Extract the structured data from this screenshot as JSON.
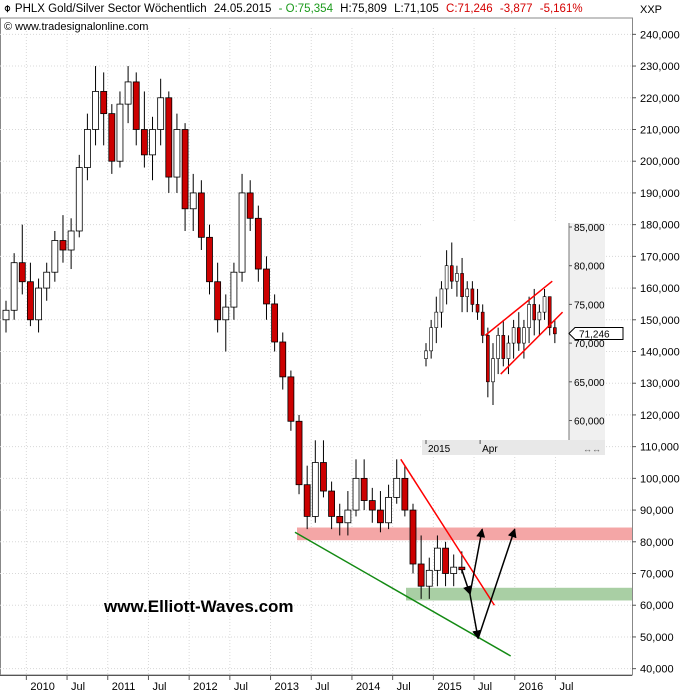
{
  "header": {
    "name": "PHLX Gold/Silver Sector Wöchentlich",
    "date": "24.05.2015",
    "open": "- O:75,354",
    "high": "H:75,809",
    "low": "L:71,105",
    "close": "C:71,246",
    "change": "-3,877",
    "pct": "-5,161%",
    "source": "www.tradesignalonline.com",
    "symbol": "XXP",
    "watermark": "www.Elliott-Waves.com"
  },
  "colors": {
    "up": "#ffffff",
    "down": "#cc0000",
    "wick": "#000000",
    "resistance_zone": "#f4a6a6",
    "support_zone": "#a9cfa4",
    "trend_red": "#ff0000",
    "trend_green": "#138a13"
  },
  "chart_data": [
    {
      "type": "candlestick",
      "x_ticks": [
        "2010",
        "Jul",
        "2011",
        "Jul",
        "2012",
        "Jul",
        "2013",
        "Jul",
        "2014",
        "Jul",
        "2015",
        "Jul",
        "2016",
        "Jul"
      ],
      "y_ticks": [
        "40,000",
        "50,000",
        "60,000",
        "70,000",
        "80,000",
        "90,000",
        "100,000",
        "110,000",
        "120,000",
        "130,000",
        "140,000",
        "150,000",
        "160,000",
        "170,000",
        "180,000",
        "190,000",
        "200,000",
        "210,000",
        "220,000",
        "230,000",
        "240,000"
      ],
      "y_range": [
        38,
        242
      ],
      "last_value": 71.246,
      "series": [
        {
          "values": [
            [
              2009.75,
              150,
              156,
              146,
              153
            ],
            [
              2009.85,
              153,
              171,
              150,
              168
            ],
            [
              2009.95,
              168,
              180,
              158,
              162
            ],
            [
              2010.05,
              162,
              168,
              148,
              150
            ],
            [
              2010.15,
              150,
              163,
              146,
              160
            ],
            [
              2010.25,
              160,
              168,
              156,
              165
            ],
            [
              2010.35,
              165,
              178,
              162,
              175
            ],
            [
              2010.45,
              175,
              183,
              168,
              172
            ],
            [
              2010.55,
              172,
              182,
              166,
              178
            ],
            [
              2010.65,
              178,
              202,
              176,
              198
            ],
            [
              2010.75,
              198,
              215,
              194,
              210
            ],
            [
              2010.85,
              210,
              230,
              205,
              222
            ],
            [
              2010.95,
              222,
              228,
              205,
              215
            ],
            [
              2011.05,
              215,
              218,
              196,
              200
            ],
            [
              2011.15,
              200,
              222,
              198,
              218
            ],
            [
              2011.25,
              218,
              230,
              212,
              225
            ],
            [
              2011.35,
              225,
              228,
              205,
              210
            ],
            [
              2011.45,
              210,
              222,
              198,
              202
            ],
            [
              2011.55,
              202,
              214,
              194,
              210
            ],
            [
              2011.65,
              210,
              226,
              205,
              220
            ],
            [
              2011.75,
              220,
              222,
              190,
              195
            ],
            [
              2011.85,
              195,
              215,
              190,
              210
            ],
            [
              2011.95,
              210,
              212,
              178,
              185
            ],
            [
              2012.05,
              185,
              196,
              178,
              190
            ],
            [
              2012.15,
              190,
              194,
              172,
              176
            ],
            [
              2012.25,
              176,
              180,
              158,
              162
            ],
            [
              2012.35,
              162,
              168,
              146,
              150
            ],
            [
              2012.45,
              150,
              158,
              140,
              154
            ],
            [
              2012.55,
              154,
              168,
              150,
              165
            ],
            [
              2012.65,
              165,
              196,
              162,
              190
            ],
            [
              2012.75,
              190,
              194,
              178,
              182
            ],
            [
              2012.85,
              182,
              186,
              162,
              166
            ],
            [
              2012.95,
              166,
              170,
              150,
              155
            ],
            [
              2013.05,
              155,
              158,
              140,
              143
            ],
            [
              2013.15,
              143,
              146,
              128,
              132
            ],
            [
              2013.25,
              132,
              134,
              115,
              118
            ],
            [
              2013.35,
              118,
              120,
              95,
              98
            ],
            [
              2013.45,
              98,
              104,
              84,
              88
            ],
            [
              2013.55,
              88,
              112,
              86,
              105
            ],
            [
              2013.65,
              105,
              112,
              94,
              96
            ],
            [
              2013.75,
              96,
              99,
              84,
              88
            ],
            [
              2013.85,
              88,
              92,
              82,
              86
            ],
            [
              2013.95,
              86,
              96,
              82,
              90
            ],
            [
              2014.05,
              90,
              106,
              88,
              100
            ],
            [
              2014.15,
              100,
              106,
              90,
              93
            ],
            [
              2014.25,
              93,
              97,
              86,
              90
            ],
            [
              2014.35,
              90,
              96,
              83,
              86
            ],
            [
              2014.45,
              86,
              98,
              84,
              94
            ],
            [
              2014.55,
              94,
              106,
              92,
              100
            ],
            [
              2014.65,
              100,
              104,
              88,
              90
            ],
            [
              2014.75,
              90,
              92,
              70,
              73
            ],
            [
              2014.85,
              73,
              82,
              62,
              66
            ],
            [
              2014.95,
              66,
              75,
              62,
              71
            ],
            [
              2015.05,
              71,
              82,
              66,
              78
            ],
            [
              2015.15,
              78,
              80,
              66,
              70
            ],
            [
              2015.25,
              70,
              76,
              66,
              72
            ],
            [
              2015.35,
              72,
              77,
              70,
              71.2
            ]
          ]
        }
      ],
      "annotations": {
        "resistance_zone": [
          80.5,
          84.5
        ],
        "support_zone": [
          61.5,
          65.5
        ],
        "down_trendline": [
          [
            2014.6,
            106
          ],
          [
            2015.75,
            60
          ]
        ],
        "lower_trendline": [
          [
            2013.3,
            83
          ],
          [
            2015.95,
            44
          ]
        ]
      }
    },
    {
      "type": "candlestick",
      "x_ticks": [
        "2015",
        "Apr"
      ],
      "y_ticks": [
        "60,000",
        "65,000",
        "70,000",
        "75,000",
        "80,000",
        "85,000"
      ],
      "y_range": [
        58,
        85
      ],
      "last_value": 71.246,
      "series": [
        {
          "values": [
            [
              0,
              68,
              70,
              67,
              69
            ],
            [
              1,
              69,
              73,
              68,
              72
            ],
            [
              2,
              72,
              76,
              70,
              74
            ],
            [
              3,
              74,
              78,
              72,
              77
            ],
            [
              4,
              77,
              82,
              75,
              80
            ],
            [
              5,
              80,
              83,
              77,
              78
            ],
            [
              6,
              78,
              80,
              76,
              79
            ],
            [
              7,
              79,
              81,
              74,
              76
            ],
            [
              8,
              76,
              78,
              74,
              77
            ],
            [
              9,
              77,
              78,
              74,
              75
            ],
            [
              10,
              75,
              77,
              73,
              74
            ],
            [
              11,
              74,
              75,
              70,
              71
            ],
            [
              12,
              71,
              72,
              63,
              65
            ],
            [
              13,
              65,
              70,
              62,
              68
            ],
            [
              14,
              68,
              72,
              66,
              71
            ],
            [
              15,
              71,
              73,
              67,
              68
            ],
            [
              16,
              68,
              71,
              66,
              70
            ],
            [
              17,
              70,
              73,
              68,
              72
            ],
            [
              18,
              72,
              74,
              69,
              70
            ],
            [
              19,
              70,
              73,
              68,
              72
            ],
            [
              20,
              72,
              76,
              70,
              75
            ],
            [
              21,
              75,
              77,
              71,
              73
            ],
            [
              22,
              73,
              75,
              71,
              74
            ],
            [
              23,
              74,
              77,
              73,
              76
            ],
            [
              24,
              76,
              76,
              71,
              72
            ],
            [
              25,
              72,
              73,
              70,
              71.2
            ]
          ]
        }
      ],
      "annotations": {
        "upper_channel": [
          [
            11.5,
            71
          ],
          [
            24.5,
            78
          ]
        ],
        "lower_channel": [
          [
            14.5,
            66
          ],
          [
            26.5,
            74
          ]
        ]
      }
    }
  ]
}
